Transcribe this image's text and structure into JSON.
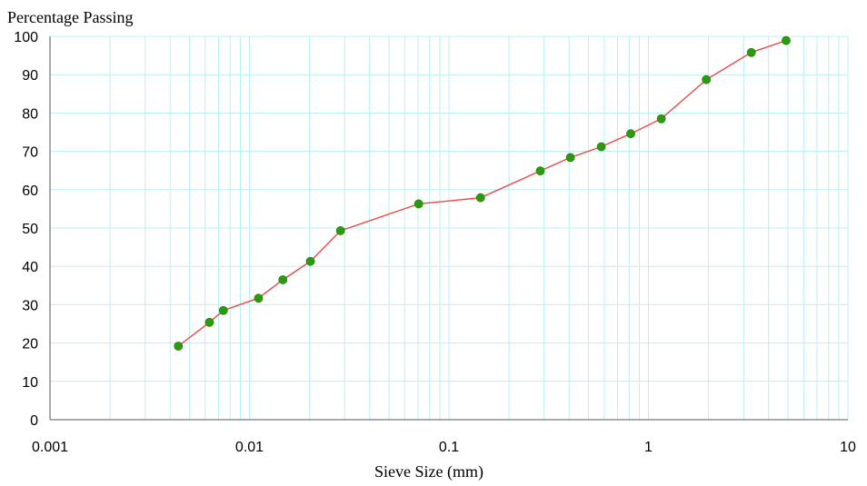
{
  "chart_data": {
    "type": "scatter",
    "ylabel": "Percentage Passing",
    "xlabel": "Sieve Size (mm)",
    "x_scale": "log",
    "xlim": [
      0.001,
      10
    ],
    "ylim": [
      0,
      100
    ],
    "grid": true,
    "x_ticks": [
      "0.001",
      "0.01",
      "0.1",
      "1",
      "10"
    ],
    "y_ticks": [
      "0",
      "10",
      "20",
      "30",
      "40",
      "50",
      "60",
      "70",
      "80",
      "90",
      "100"
    ],
    "colors": {
      "line": "#f04646",
      "marker": "#2c9a0f",
      "grid": "#b8f0f4"
    },
    "series": [
      {
        "x": [
          0.0044,
          0.0063,
          0.0074,
          0.0111,
          0.0147,
          0.0202,
          0.0286,
          0.0705,
          0.144,
          0.287,
          0.406,
          0.58,
          0.815,
          1.16,
          1.95,
          3.28,
          4.9
        ],
        "y": [
          19.2,
          25.4,
          28.5,
          31.7,
          36.5,
          41.3,
          49.3,
          56.3,
          57.9,
          64.9,
          68.4,
          71.2,
          74.6,
          78.5,
          88.7,
          95.8,
          98.9
        ]
      }
    ]
  }
}
